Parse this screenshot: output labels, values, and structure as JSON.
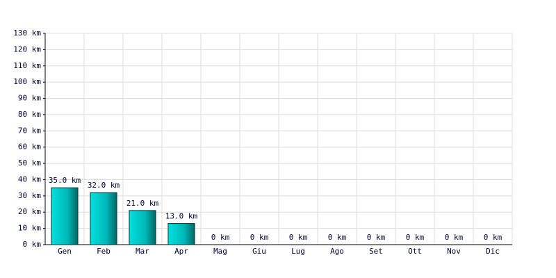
{
  "chart_data": {
    "type": "bar",
    "categories": [
      "Gen",
      "Feb",
      "Mar",
      "Apr",
      "Mag",
      "Giu",
      "Lug",
      "Ago",
      "Set",
      "Ott",
      "Nov",
      "Dic"
    ],
    "values": [
      35,
      32,
      21,
      13,
      0,
      0,
      0,
      0,
      0,
      0,
      0,
      0
    ],
    "value_labels": [
      "35.0 km",
      "32.0 km",
      "21.0 km",
      "13.0 km",
      "0 km",
      "0 km",
      "0 km",
      "0 km",
      "0 km",
      "0 km",
      "0 km",
      "0 km"
    ],
    "color": "#00cccc",
    "ylim": [
      0,
      130
    ],
    "yticks": [
      {
        "value": 0,
        "label": "0 km"
      },
      {
        "value": 10,
        "label": "10 km"
      },
      {
        "value": 20,
        "label": "20 km"
      },
      {
        "value": 30,
        "label": "30 km"
      },
      {
        "value": 40,
        "label": "40 km"
      },
      {
        "value": 50,
        "label": "50 km"
      },
      {
        "value": 60,
        "label": "60 km"
      },
      {
        "value": 70,
        "label": "70 km"
      },
      {
        "value": 80,
        "label": "80 km"
      },
      {
        "value": 90,
        "label": "90 km"
      },
      {
        "value": 100,
        "label": "100 km"
      },
      {
        "value": 110,
        "label": "110 km"
      },
      {
        "value": 120,
        "label": "120 km"
      },
      {
        "value": 130,
        "label": "130 km"
      }
    ],
    "grid": true
  }
}
